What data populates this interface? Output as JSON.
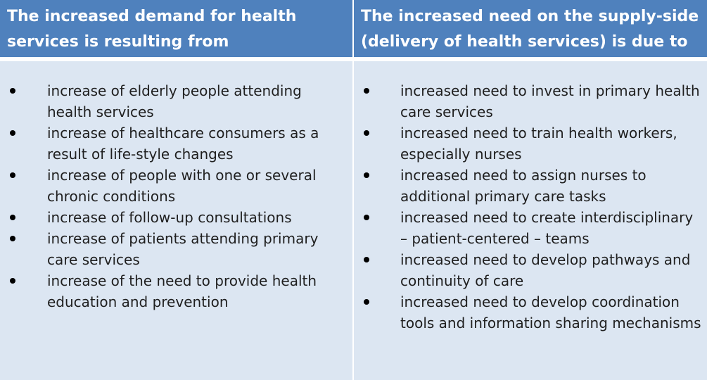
{
  "columns": [
    {
      "header": "The increased demand for health services is resulting from",
      "items": [
        "increase of elderly people attending health services",
        "increase of healthcare consumers as a result of life-style changes",
        "increase of people with one or several chronic conditions",
        "increase of follow-up consultations",
        "increase of patients attending primary care services",
        "increase of the need to provide health education and prevention"
      ]
    },
    {
      "header": "The increased need on the supply-side (delivery of health services) is due to",
      "items": [
        "increased need to invest in primary health care services",
        "increased need to train health workers, especially nurses",
        "increased need to assign nurses to additional primary care tasks",
        "increased need to create interdisciplinary – patient-centered – teams",
        "increased need to develop pathways and continuity of care",
        "increased need to develop coordination tools and information sharing mechanisms"
      ]
    }
  ],
  "colors": {
    "header_bg": "#4f81bd",
    "header_text": "#ffffff",
    "body_bg": "#dce6f2",
    "text": "#1f1f1f"
  }
}
